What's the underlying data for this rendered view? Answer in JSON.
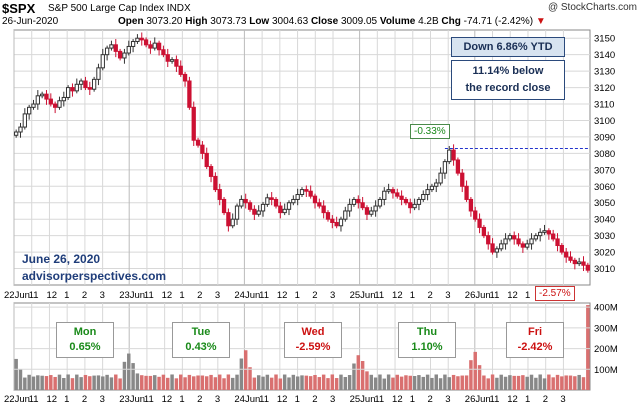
{
  "header": {
    "symbol": "$SPX",
    "name": "S&P 500 Large Cap Index",
    "exchange": "INDX",
    "date": "26-Jun-2020",
    "open_label": "Open",
    "open": "3073.20",
    "high_label": "High",
    "high": "3073.73",
    "low_label": "Low",
    "low": "3004.63",
    "close_label": "Close",
    "close": "3009.05",
    "volume_label": "Volume",
    "volume": "4.2B",
    "change_label": "Chg",
    "change": "-74.71 (-2.42%)",
    "watermark": "@ StockCharts.com"
  },
  "annotations": {
    "ytd": "Down 6.86% YTD",
    "below_record_1": "11.14% below",
    "below_record_2": "the record close",
    "high_callout": "-0.33%",
    "low_callout": "-2.57%",
    "site_date": "June 26, 2020",
    "site_url": "advisorperspectives.com"
  },
  "days": [
    {
      "name": "Mon",
      "pct": "0.65%",
      "color": "#1a8a1a"
    },
    {
      "name": "Tue",
      "pct": "0.43%",
      "color": "#1a8a1a"
    },
    {
      "name": "Wed",
      "pct": "-2.59%",
      "color": "#cc1111"
    },
    {
      "name": "Thu",
      "pct": "1.10%",
      "color": "#1a8a1a"
    },
    {
      "name": "Fri",
      "pct": "-2.42%",
      "color": "#cc1111"
    }
  ],
  "colors": {
    "up": "#333333",
    "down": "#cc1133",
    "vol_up": "#888888",
    "vol_down": "#d97070",
    "grid": "#d8d8d8",
    "record_line": "#2233cc"
  },
  "chart_data": [
    {
      "type": "candlestick",
      "title": "$SPX S&P 500 Large Cap Index",
      "ylim": [
        3000,
        3155
      ],
      "yticks": [
        3010,
        3020,
        3030,
        3040,
        3050,
        3060,
        3070,
        3080,
        3090,
        3100,
        3110,
        3120,
        3130,
        3140,
        3150
      ],
      "x_day_labels": [
        "22Jun",
        "23Jun",
        "24Jun",
        "25Jun",
        "26Jun"
      ],
      "x_hour_labels": [
        "11",
        "12",
        "1",
        "2",
        "3"
      ],
      "record_close_level": 3083,
      "close_series": [
        3093,
        3096,
        3104,
        3108,
        3110,
        3115,
        3116,
        3113,
        3110,
        3108,
        3112,
        3114,
        3120,
        3118,
        3122,
        3124,
        3120,
        3119,
        3125,
        3132,
        3140,
        3144,
        3146,
        3142,
        3138,
        3141,
        3145,
        3148,
        3150,
        3149,
        3146,
        3144,
        3147,
        3143,
        3140,
        3136,
        3137,
        3133,
        3128,
        3124,
        3108,
        3088,
        3085,
        3080,
        3072,
        3066,
        3058,
        3052,
        3044,
        3036,
        3040,
        3048,
        3052,
        3050,
        3046,
        3043,
        3045,
        3049,
        3053,
        3052,
        3048,
        3044,
        3046,
        3050,
        3052,
        3055,
        3058,
        3057,
        3054,
        3050,
        3048,
        3044,
        3040,
        3038,
        3036,
        3040,
        3045,
        3049,
        3052,
        3050,
        3047,
        3043,
        3045,
        3048,
        3052,
        3057,
        3058,
        3056,
        3054,
        3052,
        3050,
        3047,
        3049,
        3052,
        3055,
        3058,
        3060,
        3062,
        3068,
        3075,
        3082,
        3076,
        3068,
        3060,
        3052,
        3045,
        3040,
        3035,
        3030,
        3025,
        3020,
        3022,
        3025,
        3028,
        3030,
        3028,
        3025,
        3023,
        3025,
        3028,
        3030,
        3032,
        3033,
        3031,
        3028,
        3024,
        3020,
        3017,
        3015,
        3013,
        3014,
        3012,
        3009
      ],
      "volume_ylim_millions": [
        0,
        420
      ],
      "volume_ticks": [
        "100M",
        "200M",
        "300M",
        "400M"
      ]
    }
  ]
}
